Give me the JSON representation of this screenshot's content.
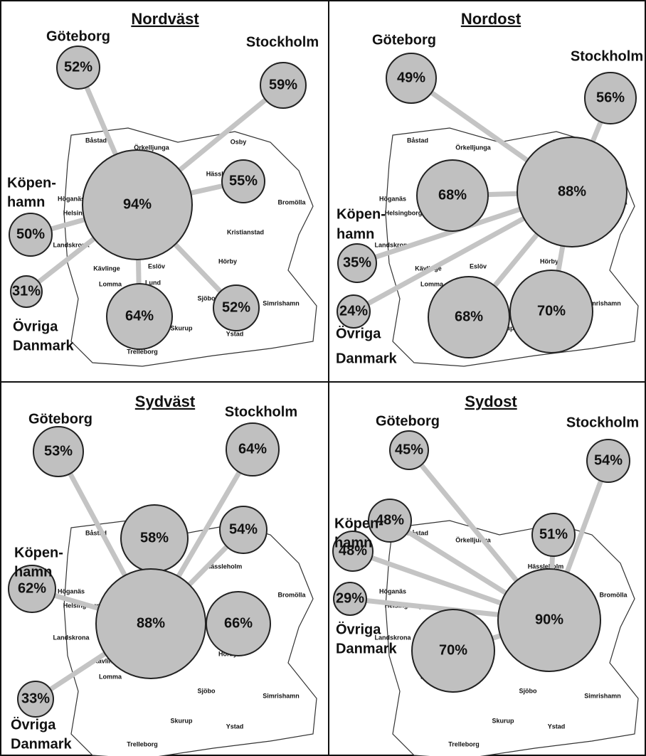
{
  "panels": [
    {
      "title": "Nordväst",
      "labels": [
        "Göteborg",
        "Stockholm",
        "Köpen-",
        "hamn",
        "Övriga",
        "Danmark"
      ],
      "bubbles": [
        "52%",
        "59%",
        "94%",
        "55%",
        "50%",
        "31%",
        "64%",
        "52%"
      ]
    },
    {
      "title": "Nordost",
      "labels": [
        "Göteborg",
        "Stockholm",
        "Köpen-",
        "hamn",
        "Övriga",
        "Danmark"
      ],
      "bubbles": [
        "49%",
        "56%",
        "68%",
        "88%",
        "35%",
        "24%",
        "68%",
        "70%"
      ]
    },
    {
      "title": "Sydväst",
      "labels": [
        "Göteborg",
        "Stockholm",
        "Köpen-",
        "hamn",
        "Övriga",
        "Danmark"
      ],
      "bubbles": [
        "53%",
        "64%",
        "58%",
        "54%",
        "62%",
        "88%",
        "66%",
        "33%"
      ]
    },
    {
      "title": "Sydost",
      "labels": [
        "Göteborg",
        "Stockholm",
        "Köpen-",
        "hamn",
        "Övriga",
        "Danmark"
      ],
      "bubbles": [
        "45%",
        "54%",
        "48%",
        "51%",
        "48%",
        "29%",
        "70%",
        "90%"
      ]
    }
  ],
  "map_places": [
    "Båstad",
    "Örkelljunga",
    "Osby",
    "Hässleholm",
    "Höganäs",
    "Helsingborg",
    "Bromölla",
    "Kristianstad",
    "Landskrona",
    "Hörby",
    "Kävlinge",
    "Eslöv",
    "Lomma",
    "Lund",
    "Sjöbo",
    "Ystad",
    "Trelleborg",
    "Skurup",
    "Simrishamn"
  ]
}
